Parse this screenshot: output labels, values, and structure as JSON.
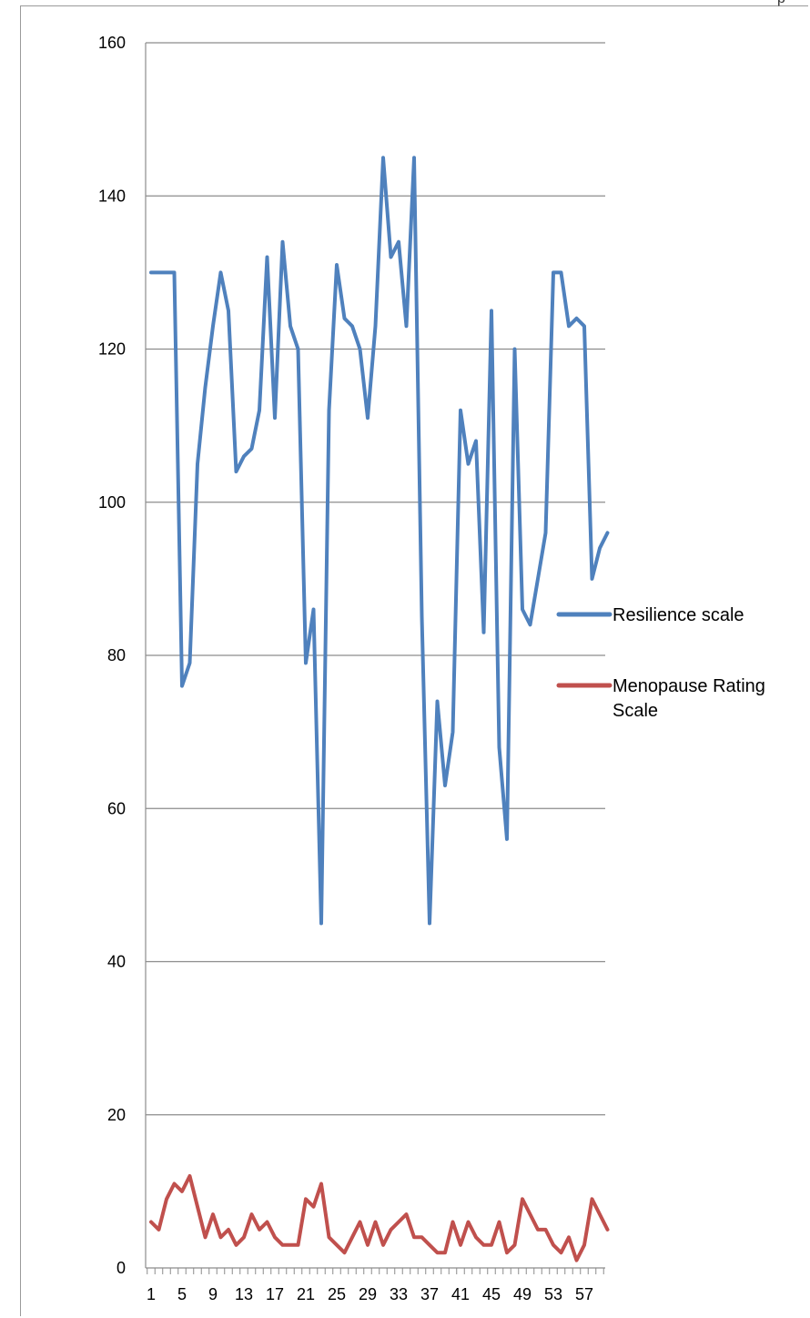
{
  "chart_data": {
    "type": "line",
    "title": "",
    "xlabel": "",
    "ylabel": "",
    "ylim": [
      0,
      160
    ],
    "yticks": [
      0,
      20,
      40,
      60,
      80,
      100,
      120,
      140,
      160
    ],
    "x": [
      1,
      2,
      3,
      4,
      5,
      6,
      7,
      8,
      9,
      10,
      11,
      12,
      13,
      14,
      15,
      16,
      17,
      18,
      19,
      20,
      21,
      22,
      23,
      24,
      25,
      26,
      27,
      28,
      29,
      30,
      31,
      32,
      33,
      34,
      35,
      36,
      37,
      38,
      39,
      40,
      41,
      42,
      43,
      44,
      45,
      46,
      47,
      48,
      49,
      50,
      51,
      52,
      53,
      54,
      55,
      56,
      57,
      58,
      59,
      60
    ],
    "xtick_labels": [
      "1",
      "5",
      "9",
      "13",
      "17",
      "21",
      "25",
      "29",
      "33",
      "37",
      "41",
      "45",
      "49",
      "53",
      "57"
    ],
    "grid": true,
    "legend_position": "right",
    "series": [
      {
        "name": "Resilience scale",
        "color": "#4f81bd",
        "values": [
          130,
          130,
          130,
          130,
          76,
          79,
          105,
          115,
          123,
          130,
          125,
          104,
          106,
          107,
          112,
          132,
          111,
          134,
          123,
          120,
          79,
          86,
          45,
          112,
          131,
          124,
          123,
          120,
          111,
          123,
          145,
          132,
          134,
          123,
          145,
          85,
          45,
          74,
          63,
          70,
          112,
          105,
          108,
          83,
          125,
          68,
          56,
          120,
          86,
          84,
          90,
          96,
          130,
          130,
          123,
          124,
          123,
          90,
          94,
          96
        ]
      },
      {
        "name": "Menopause Rating Scale",
        "name_lines": [
          "Menopause Rating",
          "Scale"
        ],
        "color": "#c0504d",
        "values": [
          6,
          5,
          9,
          11,
          10,
          12,
          8,
          4,
          7,
          4,
          5,
          3,
          4,
          7,
          5,
          6,
          4,
          3,
          3,
          3,
          9,
          8,
          11,
          4,
          3,
          2,
          4,
          6,
          3,
          6,
          3,
          5,
          6,
          7,
          4,
          4,
          3,
          2,
          2,
          6,
          3,
          6,
          4,
          3,
          3,
          6,
          2,
          3,
          9,
          7,
          5,
          5,
          3,
          2,
          4,
          1,
          3,
          9,
          7,
          5
        ]
      }
    ]
  },
  "page": {
    "corner_glyph": "p"
  }
}
